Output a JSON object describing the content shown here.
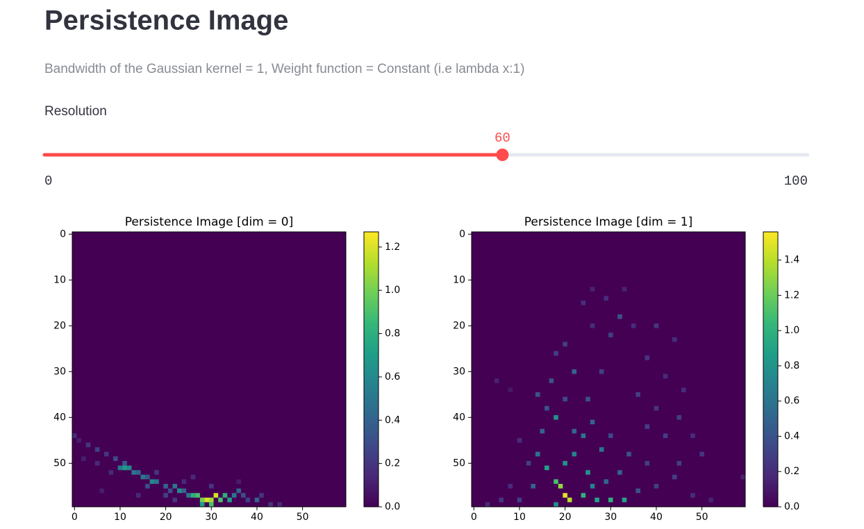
{
  "header": {
    "title": "Persistence Image",
    "subtitle": "Bandwidth of the Gaussian kernel = 1, Weight function = Constant (i.e lambda x:1)"
  },
  "slider": {
    "label": "Resolution",
    "value": 60,
    "min": 0,
    "max": 100
  },
  "chart_data": [
    {
      "type": "heatmap",
      "title": "Persistence Image [dim = 0]",
      "xlim": [
        -0.5,
        59.5
      ],
      "ylim": [
        59.5,
        -0.5
      ],
      "xticks": [
        0,
        10,
        20,
        30,
        40,
        50
      ],
      "yticks": [
        0,
        10,
        20,
        30,
        40,
        50
      ],
      "colorbar": {
        "lim": [
          0,
          1.27
        ],
        "ticks": [
          {
            "value": 0,
            "label": "0.0"
          },
          0.2,
          0.4,
          0.6,
          0.8,
          {
            "value": 1,
            "label": "1.0"
          },
          1.2
        ]
      },
      "cells": {
        "x": [
          0,
          1,
          3,
          5,
          7,
          9,
          11,
          10,
          11,
          12,
          13,
          14,
          15,
          16,
          17,
          18,
          16,
          20,
          21,
          22,
          23,
          24,
          25,
          26,
          27,
          28,
          29,
          30,
          31,
          32,
          33,
          34,
          35,
          36,
          37,
          38,
          40,
          41,
          43,
          45,
          28,
          30,
          20,
          8,
          5,
          2,
          18,
          24,
          30,
          26,
          36,
          6,
          14,
          22
        ],
        "y": [
          44,
          45,
          46,
          47,
          48,
          49,
          50,
          51,
          51,
          51,
          52,
          52,
          53,
          53,
          54,
          54,
          55,
          55,
          56,
          55,
          56,
          56,
          57,
          57,
          57,
          58,
          58,
          58,
          57,
          58,
          57,
          58,
          57,
          56,
          57,
          58,
          58,
          57,
          59,
          59,
          59,
          59,
          57,
          52,
          50,
          49,
          52,
          54,
          55,
          53,
          54,
          56,
          57,
          58
        ],
        "values": [
          0.15,
          0.1,
          0.2,
          0.25,
          0.2,
          0.3,
          0.35,
          0.5,
          0.7,
          0.6,
          0.5,
          0.4,
          0.5,
          0.35,
          0.6,
          0.5,
          0.3,
          0.4,
          0.3,
          0.5,
          0.6,
          0.4,
          0.5,
          0.8,
          0.9,
          1.0,
          1.2,
          1.1,
          1.2,
          0.9,
          0.8,
          0.7,
          0.5,
          0.4,
          0.3,
          0.25,
          0.4,
          0.2,
          0.2,
          0.15,
          0.7,
          0.9,
          0.25,
          0.15,
          0.15,
          0.1,
          0.2,
          0.15,
          0.2,
          0.15,
          0.1,
          0.1,
          0.15,
          0.2
        ]
      }
    },
    {
      "type": "heatmap",
      "title": "Persistence Image [dim = 1]",
      "xlim": [
        -0.5,
        59.5
      ],
      "ylim": [
        59.5,
        -0.5
      ],
      "xticks": [
        0,
        10,
        20,
        30,
        40,
        50
      ],
      "yticks": [
        0,
        10,
        20,
        30,
        40,
        50
      ],
      "colorbar": {
        "lim": [
          0,
          1.56
        ],
        "ticks": [
          {
            "value": 0,
            "label": "0.0"
          },
          0.2,
          0.4,
          0.6,
          0.8,
          {
            "value": 1,
            "label": "1.0"
          },
          1.2,
          1.4
        ]
      },
      "cells": {
        "x": [
          18,
          20,
          21,
          19,
          18,
          16,
          24,
          27,
          30,
          33,
          20,
          22,
          25,
          28,
          24,
          22,
          26,
          15,
          14,
          17,
          18,
          20,
          22,
          25,
          28,
          30,
          29,
          32,
          35,
          40,
          44,
          38,
          42,
          46,
          36,
          40,
          45,
          48,
          50,
          42,
          38,
          34,
          30,
          32,
          36,
          40,
          44,
          48,
          52,
          10,
          6,
          3,
          8,
          12,
          10,
          5,
          8,
          26,
          24,
          26,
          33,
          45,
          38,
          16,
          20,
          13,
          14,
          26,
          18,
          29,
          59
        ],
        "y": [
          40,
          57,
          58,
          55,
          54,
          51,
          57,
          58,
          58,
          58,
          50,
          48,
          52,
          47,
          44,
          43,
          41,
          43,
          35,
          32,
          26,
          24,
          30,
          36,
          30,
          22,
          14,
          18,
          20,
          20,
          23,
          27,
          31,
          34,
          35,
          38,
          40,
          44,
          48,
          44,
          50,
          48,
          44,
          52,
          56,
          55,
          53,
          57,
          58,
          58,
          58,
          59,
          55,
          50,
          45,
          32,
          34,
          20,
          15,
          12,
          12,
          50,
          42,
          38,
          36,
          55,
          48,
          55,
          59,
          54,
          53
        ],
        "values": [
          0.8,
          1.5,
          1.4,
          1.3,
          1.1,
          0.9,
          1.0,
          0.9,
          1.0,
          0.9,
          0.8,
          0.7,
          0.8,
          0.6,
          0.6,
          0.5,
          0.5,
          0.5,
          0.4,
          0.4,
          0.3,
          0.3,
          0.5,
          0.4,
          0.3,
          0.3,
          0.2,
          0.4,
          0.2,
          0.25,
          0.2,
          0.25,
          0.2,
          0.2,
          0.3,
          0.25,
          0.3,
          0.2,
          0.25,
          0.3,
          0.3,
          0.4,
          0.35,
          0.5,
          0.4,
          0.3,
          0.3,
          0.2,
          0.15,
          0.3,
          0.25,
          0.2,
          0.2,
          0.3,
          0.2,
          0.15,
          0.1,
          0.2,
          0.2,
          0.15,
          0.15,
          0.3,
          0.3,
          0.4,
          0.35,
          0.5,
          0.6,
          0.7,
          0.8,
          0.5,
          0.15
        ]
      }
    }
  ]
}
